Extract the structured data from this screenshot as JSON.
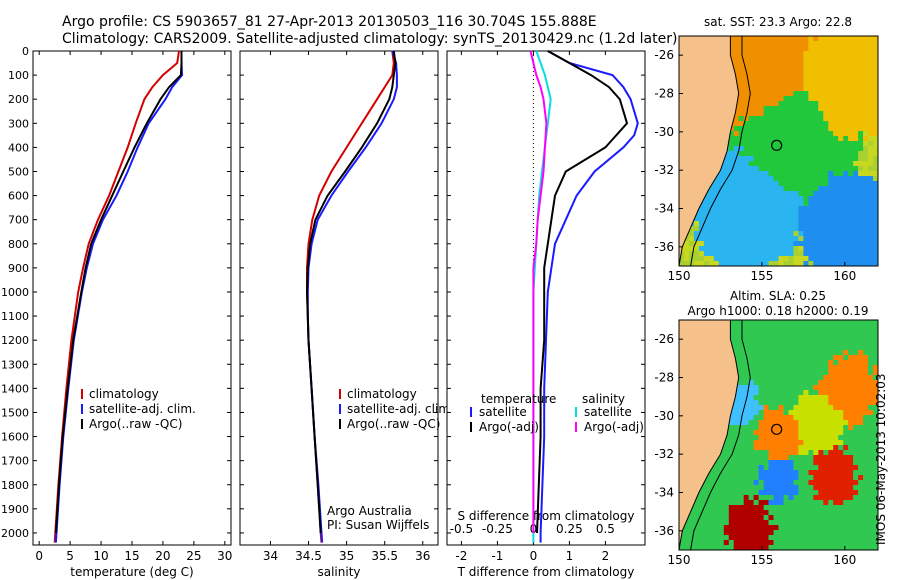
{
  "header": {
    "line1": "Argo profile: CS 5903657_81 27-Apr-2013 20130503_116 30.704S 155.888E",
    "line2": "Climatology: CARS2009. Satellite-adjusted climatology: synTS_20130429.nc (1.2d later)"
  },
  "colors": {
    "climatology": "#d40000",
    "satellite": "#1a1aff",
    "argo": "#000000",
    "sat_diff": "#00e0e0",
    "argo_diff": "#ff00ff",
    "land": "#f5c08a"
  },
  "chart_data": [
    {
      "type": "line",
      "id": "temperature",
      "xlabel": "temperature (deg C)",
      "ylabel": "",
      "xlim": [
        -1,
        31
      ],
      "ylim": [
        2050,
        0
      ],
      "xticks": [
        "0",
        "5",
        "10",
        "15",
        "20",
        "25",
        "30"
      ],
      "yticks": [
        "0",
        "100",
        "200",
        "300",
        "400",
        "500",
        "600",
        "700",
        "800",
        "900",
        "1000",
        "1100",
        "1200",
        "1300",
        "1400",
        "1500",
        "1600",
        "1700",
        "1800",
        "1900",
        "2000"
      ],
      "legend": [
        "climatology",
        "satellite-adj. clim.",
        "Argo(..raw -QC)"
      ],
      "legend_position": "lower-right",
      "series": [
        {
          "name": "climatology",
          "depth": [
            0,
            50,
            100,
            150,
            200,
            300,
            400,
            500,
            600,
            700,
            800,
            900,
            1000,
            1200,
            1400,
            1600,
            1800,
            2000,
            2040
          ],
          "values": [
            22.6,
            22.3,
            20.0,
            18.3,
            17.0,
            15.6,
            14.3,
            12.8,
            11.3,
            9.5,
            8.0,
            7.1,
            6.3,
            5.2,
            4.4,
            3.7,
            3.1,
            2.6,
            2.5
          ]
        },
        {
          "name": "satellite-adj. clim.",
          "depth": [
            0,
            50,
            100,
            150,
            200,
            300,
            400,
            500,
            600,
            700,
            800,
            900,
            1000,
            1200,
            1400,
            1600,
            1800,
            2000,
            2040
          ],
          "values": [
            23.0,
            23.0,
            23.1,
            21.5,
            20.4,
            17.7,
            15.9,
            14.3,
            12.5,
            10.3,
            8.7,
            7.7,
            6.9,
            5.6,
            4.7,
            3.9,
            3.3,
            2.8,
            2.7
          ]
        },
        {
          "name": "Argo(..raw -QC)",
          "depth": [
            0,
            50,
            100,
            150,
            200,
            300,
            400,
            500,
            600,
            700,
            800,
            900,
            1000,
            1200,
            1400,
            1600,
            1800,
            2000
          ],
          "values": [
            23.0,
            23.0,
            22.9,
            21.0,
            19.6,
            17.4,
            15.4,
            13.6,
            11.8,
            10.0,
            8.4,
            7.5,
            6.8,
            5.5,
            4.6,
            3.8,
            3.2,
            2.7
          ]
        }
      ]
    },
    {
      "type": "line",
      "id": "salinity",
      "xlabel": "salinity",
      "ylabel": "",
      "xlim": [
        33.6,
        36.2
      ],
      "ylim": [
        2050,
        0
      ],
      "xticks": [
        "34",
        "34.5",
        "35",
        "35.5",
        "36"
      ],
      "legend": [
        "climatology",
        "satellite-adj. clim.",
        "Argo(..raw -QC)"
      ],
      "legend_position": "lower-right",
      "annotation": [
        "Argo Australia",
        "PI: Susan Wijffels"
      ],
      "series": [
        {
          "name": "climatology",
          "depth": [
            0,
            50,
            100,
            150,
            200,
            300,
            400,
            500,
            600,
            700,
            800,
            900,
            1000,
            1100,
            1200,
            1400,
            1600,
            1800,
            2000,
            2040
          ],
          "values": [
            35.6,
            35.62,
            35.6,
            35.5,
            35.4,
            35.2,
            35.0,
            34.8,
            34.64,
            34.55,
            34.5,
            34.48,
            34.48,
            34.49,
            34.5,
            34.54,
            34.58,
            34.62,
            34.66,
            34.67
          ]
        },
        {
          "name": "satellite-adj. clim.",
          "depth": [
            0,
            50,
            100,
            150,
            200,
            300,
            400,
            500,
            600,
            700,
            800,
            900,
            1000,
            1100,
            1200,
            1400,
            1600,
            1800,
            2000,
            2040
          ],
          "values": [
            35.6,
            35.65,
            35.66,
            35.66,
            35.62,
            35.46,
            35.25,
            35.02,
            34.8,
            34.62,
            34.54,
            34.5,
            34.49,
            34.49,
            34.5,
            34.54,
            34.58,
            34.63,
            34.67,
            34.68
          ]
        },
        {
          "name": "Argo(..raw -QC)",
          "depth": [
            0,
            50,
            100,
            150,
            200,
            300,
            400,
            500,
            600,
            700,
            800,
            900,
            1000,
            1100,
            1200,
            1400,
            1600,
            1800,
            2000
          ],
          "values": [
            35.62,
            35.64,
            35.62,
            35.6,
            35.56,
            35.4,
            35.2,
            34.98,
            34.75,
            34.59,
            34.52,
            34.49,
            34.48,
            34.49,
            34.5,
            34.54,
            34.58,
            34.62,
            34.66
          ]
        }
      ]
    },
    {
      "type": "line",
      "id": "difference",
      "xlabel": "T difference from climatology",
      "xlabel2": "S difference from climatology",
      "xlim": [
        -2.4,
        3.1
      ],
      "ylim": [
        2050,
        0
      ],
      "xticks": [
        "-2",
        "-1",
        "0",
        "1",
        "2"
      ],
      "xticks_s": [
        "-0.5",
        "-0.25",
        "0",
        "0.25",
        "0.5"
      ],
      "legend_headers": [
        "temperature",
        "salinity"
      ],
      "legend": [
        "satellite",
        "Argo(-adj)",
        "satellite",
        "Argo(-adj)"
      ],
      "legend_position": "lower-center",
      "series": [
        {
          "name": "satellite",
          "group": "temperature",
          "depth": [
            0,
            50,
            100,
            150,
            200,
            300,
            350,
            400,
            500,
            600,
            700,
            800,
            900,
            1000,
            1200,
            1400,
            1600,
            1800,
            2000,
            2040
          ],
          "values": [
            0.4,
            1.0,
            2.2,
            2.5,
            2.7,
            2.9,
            2.8,
            2.5,
            1.7,
            1.2,
            0.9,
            0.6,
            0.5,
            0.4,
            0.35,
            0.3,
            0.3,
            0.25,
            0.2,
            0.2
          ]
        },
        {
          "name": "Argo(-adj)",
          "group": "temperature",
          "depth": [
            0,
            50,
            100,
            150,
            200,
            300,
            400,
            500,
            600,
            700,
            800,
            900,
            1000,
            1200,
            1400,
            1600,
            1800,
            2000
          ],
          "values": [
            0.4,
            1.0,
            1.6,
            2.1,
            2.4,
            2.6,
            2.0,
            0.9,
            0.6,
            0.5,
            0.4,
            0.3,
            0.3,
            0.3,
            0.2,
            0.2,
            0.15,
            0.1
          ]
        },
        {
          "name": "satellite",
          "group": "salinity",
          "depth": [
            0,
            50,
            100,
            150,
            200,
            300,
            400,
            500,
            600,
            700,
            800,
            900,
            1000,
            1200,
            1400,
            1600,
            1800,
            2000,
            2040
          ],
          "values": [
            0.02,
            0.05,
            0.08,
            0.1,
            0.12,
            0.1,
            0.08,
            0.06,
            0.04,
            0.03,
            0.02,
            0.01,
            0.0,
            0.0,
            0.0,
            0.0,
            0.0,
            0.0,
            0.0
          ]
        },
        {
          "name": "Argo(-adj)",
          "group": "salinity",
          "depth": [
            0,
            50,
            100,
            150,
            200,
            300,
            400,
            500,
            600,
            700,
            800,
            900,
            1000,
            1200,
            1400,
            1600,
            1800,
            2000
          ],
          "values": [
            -0.02,
            0.0,
            0.02,
            0.05,
            0.07,
            0.09,
            0.08,
            0.07,
            0.05,
            0.03,
            0.02,
            0.0,
            0.0,
            0.0,
            0.0,
            0.0,
            0.0,
            0.0
          ]
        }
      ]
    },
    {
      "type": "heatmap",
      "id": "sst-map",
      "title": "sat. SST: 23.3 Argo: 22.8",
      "xticks": [
        "150",
        "155",
        "160"
      ],
      "yticks": [
        "-26",
        "-28",
        "-30",
        "-32",
        "-34",
        "-36"
      ],
      "xlim": [
        150,
        162
      ],
      "ylim": [
        -37,
        -25
      ],
      "argo_position": [
        155.888,
        -30.704
      ]
    },
    {
      "type": "heatmap",
      "id": "sla-map",
      "title": "Altim. SLA: 0.25",
      "subtitle": "Argo h1000: 0.18 h2000: 0.19",
      "xticks": [
        "150",
        "155",
        "160"
      ],
      "yticks": [
        "-26",
        "-28",
        "-30",
        "-32",
        "-34",
        "-36"
      ],
      "xlim": [
        150,
        162
      ],
      "ylim": [
        -37,
        -25
      ],
      "argo_position": [
        155.888,
        -30.704
      ]
    }
  ],
  "footer_stamp": "IMOS 06-May-2013 10:02:03"
}
